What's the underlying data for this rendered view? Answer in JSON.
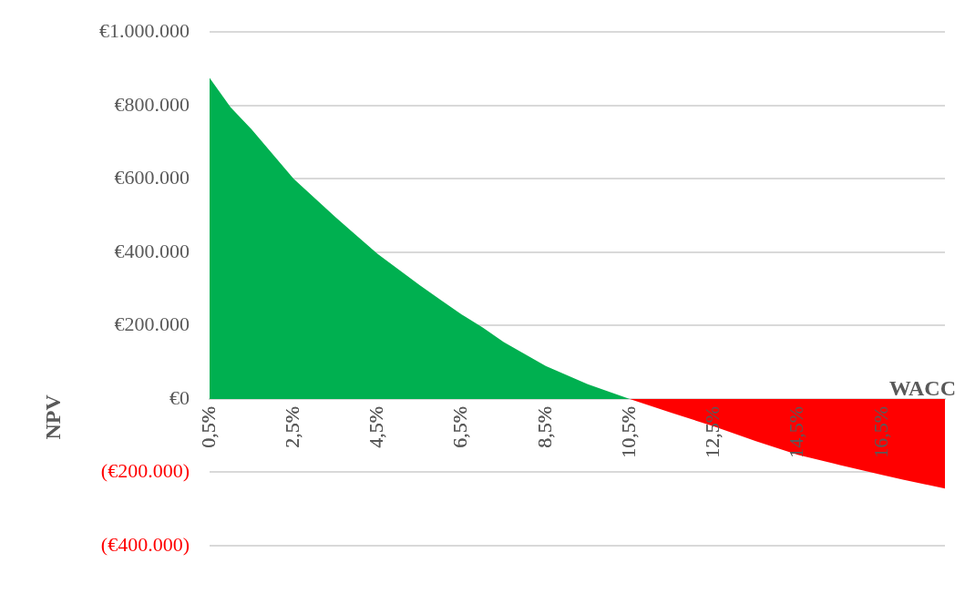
{
  "chart_data": {
    "type": "area",
    "xlabel": "WACC",
    "ylabel": "NPV",
    "series": [
      {
        "color": "#00b050",
        "x": [
          0.5,
          1,
          1.5,
          2.5,
          3.5,
          4.5,
          5.5,
          6,
          6.5,
          7,
          7.5,
          8.5,
          9.5,
          10.5
        ],
        "values": [
          875000,
          795000,
          735000,
          600000,
          495000,
          395000,
          310000,
          270000,
          230000,
          195000,
          155000,
          90000,
          40000,
          0
        ]
      },
      {
        "color": "#ff0000",
        "x": [
          10.5,
          11.5,
          12.5,
          13.5,
          14.5,
          15.5,
          16.5,
          17,
          18
        ],
        "values": [
          0,
          -38000,
          -75000,
          -115000,
          -152000,
          -180000,
          -207000,
          -220000,
          -244000
        ]
      }
    ],
    "xlim": [
      0.5,
      18
    ],
    "xticks": [
      {
        "value": 0.5,
        "label": "0,5%"
      },
      {
        "value": 2.5,
        "label": "2,5%"
      },
      {
        "value": 4.5,
        "label": "4,5%"
      },
      {
        "value": 6.5,
        "label": "6,5%"
      },
      {
        "value": 8.5,
        "label": "8,5%"
      },
      {
        "value": 10.5,
        "label": "10,5%"
      },
      {
        "value": 12.5,
        "label": "12,5%"
      },
      {
        "value": 14.5,
        "label": "14,5%"
      },
      {
        "value": 16.5,
        "label": "16,5%"
      }
    ],
    "ylim": [
      -400000,
      1000000
    ],
    "yticks": [
      {
        "value": -400000,
        "label": "(€400.000)"
      },
      {
        "value": -200000,
        "label": "(€200.000)"
      },
      {
        "value": 0,
        "label": "€0"
      },
      {
        "value": 200000,
        "label": "€200.000"
      },
      {
        "value": 400000,
        "label": "€400.000"
      },
      {
        "value": 600000,
        "label": "€600.000"
      },
      {
        "value": 800000,
        "label": "€800.000"
      },
      {
        "value": 1000000,
        "label": "€1.000.000"
      }
    ],
    "grid": "y",
    "legend": false
  }
}
